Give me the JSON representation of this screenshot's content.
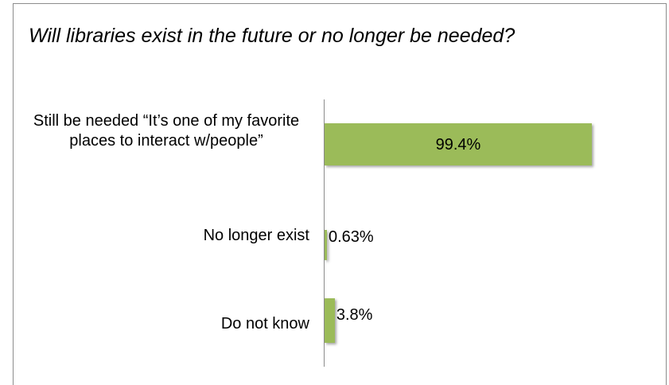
{
  "chart_data": {
    "type": "bar",
    "orientation": "horizontal",
    "title": "Will libraries exist in the future or no longer be needed?",
    "categories": [
      "Still be needed “It’s one of my favorite places to interact w/people”",
      "No longer exist",
      "Do not know"
    ],
    "values": [
      99.4,
      0.63,
      3.8
    ],
    "data_labels": [
      "99.4%",
      "0.63%",
      "3.8%"
    ],
    "xlim": [
      0,
      100
    ],
    "grid": false,
    "legend": "none",
    "bar_color": "#9bbb59"
  }
}
